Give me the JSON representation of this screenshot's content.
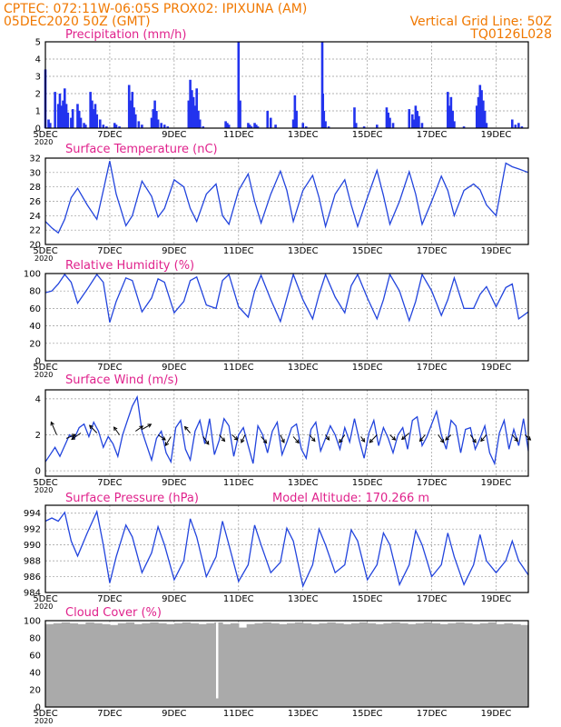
{
  "header": {
    "line1_left": "CPTEC:   072:11W-06:05S   PROX02: IPIXUNA (AM)",
    "line2_left": "05DEC2020 50Z (GMT)",
    "line2_right": "Vertical Grid Line: 50Z",
    "line3_right": "TQ0126L028"
  },
  "x_axis": {
    "tick_labels": [
      "5DEC",
      "7DEC",
      "9DEC",
      "11DEC",
      "13DEC",
      "15DEC",
      "17DEC",
      "19DEC"
    ],
    "year_label": "2020",
    "day_range": [
      5,
      20
    ]
  },
  "colors": {
    "series": "#2244dd",
    "bars": "#2233ee",
    "cloud": "#aaaaaa",
    "header": "#f07800",
    "title": "#e0228c",
    "grid": "#999999"
  },
  "chart_data": [
    {
      "type": "bar",
      "title": "Precipitation (mm/h)",
      "ylim": [
        0,
        5
      ],
      "yticks": [
        "0",
        "1",
        "2",
        "3",
        "4",
        "5"
      ],
      "x": [
        5.0,
        5.1,
        5.15,
        5.3,
        5.4,
        5.45,
        5.5,
        5.55,
        5.6,
        5.65,
        5.7,
        5.8,
        5.85,
        6.0,
        6.05,
        6.1,
        6.2,
        6.25,
        6.4,
        6.45,
        6.5,
        6.55,
        6.6,
        6.7,
        6.8,
        6.9,
        7.15,
        7.2,
        7.3,
        7.6,
        7.65,
        7.7,
        7.75,
        7.8,
        7.9,
        8.0,
        8.3,
        8.35,
        8.4,
        8.45,
        8.5,
        8.6,
        8.7,
        8.8,
        9.45,
        9.5,
        9.55,
        9.6,
        9.65,
        9.7,
        9.75,
        9.8,
        9.9,
        10.6,
        10.65,
        10.7,
        11.0,
        11.05,
        11.3,
        11.35,
        11.4,
        11.5,
        11.55,
        11.6,
        11.9,
        12.0,
        12.15,
        12.7,
        12.75,
        12.8,
        13.0,
        13.1,
        13.6,
        13.62,
        13.65,
        13.7,
        13.8,
        14.6,
        14.65,
        14.9,
        15.3,
        15.6,
        15.65,
        15.7,
        15.8,
        16.3,
        16.4,
        16.45,
        16.5,
        16.55,
        16.6,
        16.7,
        17.5,
        17.55,
        17.6,
        17.65,
        17.7,
        18.0,
        18.4,
        18.45,
        18.5,
        18.55,
        18.6,
        18.65,
        18.7,
        19.5,
        19.6,
        19.7,
        19.8
      ],
      "values": [
        3.4,
        0.5,
        0.3,
        2.1,
        1.4,
        2.0,
        1.3,
        1.6,
        2.3,
        1.4,
        0.9,
        0.6,
        1.1,
        1.4,
        1.0,
        0.6,
        0.3,
        0.2,
        2.1,
        1.6,
        1.1,
        1.4,
        0.8,
        0.5,
        0.2,
        0.1,
        0.3,
        0.2,
        0.1,
        2.5,
        1.6,
        2.1,
        1.2,
        0.8,
        0.4,
        0.2,
        0.6,
        1.1,
        1.6,
        1.0,
        0.5,
        0.3,
        0.2,
        0.1,
        1.6,
        2.8,
        2.2,
        1.8,
        1.3,
        2.3,
        1.0,
        0.5,
        0.1,
        0.4,
        0.3,
        0.2,
        5.0,
        1.6,
        0.3,
        0.2,
        0.1,
        0.3,
        0.2,
        0.1,
        1.0,
        0.6,
        0.2,
        0.5,
        1.9,
        1.0,
        0.3,
        0.1,
        5.0,
        2.0,
        1.0,
        0.4,
        0.1,
        1.2,
        0.3,
        0.1,
        0.2,
        1.2,
        0.9,
        0.6,
        0.3,
        1.1,
        0.8,
        0.5,
        1.3,
        1.0,
        0.7,
        0.3,
        2.1,
        1.3,
        1.8,
        1.0,
        0.4,
        0.1,
        1.3,
        1.8,
        2.5,
        2.2,
        1.6,
        1.0,
        0.3,
        0.5,
        0.2,
        0.3,
        0.1
      ]
    },
    {
      "type": "line",
      "title": "Surface Temperature (nC)",
      "ylim": [
        20,
        32
      ],
      "yticks": [
        "20",
        "22",
        "24",
        "26",
        "28",
        "30",
        "32"
      ],
      "x": [
        5.0,
        5.2,
        5.4,
        5.6,
        5.8,
        6.0,
        6.3,
        6.6,
        6.8,
        7.0,
        7.2,
        7.5,
        7.7,
        8.0,
        8.3,
        8.5,
        8.7,
        9.0,
        9.3,
        9.5,
        9.7,
        10.0,
        10.3,
        10.5,
        10.7,
        11.0,
        11.3,
        11.5,
        11.7,
        12.0,
        12.3,
        12.5,
        12.7,
        13.0,
        13.3,
        13.5,
        13.7,
        14.0,
        14.3,
        14.5,
        14.7,
        15.0,
        15.3,
        15.5,
        15.7,
        16.0,
        16.3,
        16.5,
        16.7,
        17.0,
        17.3,
        17.5,
        17.7,
        18.0,
        18.3,
        18.5,
        18.7,
        19.0,
        19.3,
        19.5,
        19.7,
        20.0
      ],
      "values": [
        23.2,
        22.3,
        21.6,
        23.5,
        26.5,
        27.8,
        25.5,
        23.5,
        27.5,
        31.6,
        27.0,
        22.6,
        24.0,
        28.8,
        26.7,
        23.8,
        25.0,
        29.0,
        28.0,
        25.0,
        23.2,
        27.0,
        28.4,
        24.0,
        22.8,
        27.5,
        29.8,
        26.0,
        23.0,
        27.0,
        30.2,
        27.5,
        23.2,
        27.5,
        29.6,
        26.5,
        22.5,
        27.0,
        29.0,
        25.5,
        22.5,
        26.5,
        30.3,
        26.8,
        22.8,
        26.0,
        30.1,
        27.0,
        22.8,
        26.0,
        29.5,
        27.5,
        24.0,
        27.5,
        28.4,
        27.6,
        25.5,
        24.0,
        31.3,
        30.8,
        30.5,
        30.0
      ]
    },
    {
      "type": "line",
      "title": "Relative Humidity (%)",
      "ylim": [
        0,
        100
      ],
      "yticks": [
        "0",
        "20",
        "40",
        "60",
        "80",
        "100"
      ],
      "x": [
        5.0,
        5.2,
        5.4,
        5.6,
        5.8,
        6.0,
        6.3,
        6.6,
        6.8,
        7.0,
        7.2,
        7.5,
        7.7,
        8.0,
        8.3,
        8.5,
        8.7,
        9.0,
        9.3,
        9.5,
        9.7,
        10.0,
        10.3,
        10.5,
        10.7,
        11.0,
        11.3,
        11.5,
        11.7,
        12.0,
        12.3,
        12.5,
        12.7,
        13.0,
        13.3,
        13.5,
        13.7,
        14.0,
        14.3,
        14.5,
        14.7,
        15.0,
        15.3,
        15.5,
        15.7,
        16.0,
        16.3,
        16.5,
        16.7,
        17.0,
        17.3,
        17.5,
        17.7,
        18.0,
        18.3,
        18.5,
        18.7,
        19.0,
        19.3,
        19.5,
        19.7,
        20.0
      ],
      "values": [
        78,
        80,
        88,
        99,
        90,
        66,
        82,
        99,
        90,
        44,
        68,
        95,
        92,
        56,
        72,
        94,
        90,
        55,
        68,
        92,
        96,
        64,
        60,
        92,
        99,
        62,
        50,
        80,
        98,
        70,
        45,
        72,
        99,
        70,
        48,
        76,
        99,
        73,
        55,
        86,
        99,
        72,
        48,
        70,
        99,
        80,
        46,
        68,
        99,
        80,
        52,
        70,
        95,
        60,
        60,
        76,
        85,
        62,
        84,
        88,
        48,
        56
      ]
    },
    {
      "type": "line",
      "title": "Surface Wind (m/s)",
      "ylim": [
        -0.3,
        4.5
      ],
      "yticks": [
        "0",
        "2",
        "4"
      ],
      "ytick_values": [
        0,
        2,
        4
      ],
      "x": [
        5.0,
        5.15,
        5.3,
        5.45,
        5.6,
        5.75,
        5.9,
        6.05,
        6.2,
        6.35,
        6.5,
        6.65,
        6.8,
        6.95,
        7.1,
        7.25,
        7.4,
        7.55,
        7.7,
        7.85,
        8.0,
        8.15,
        8.3,
        8.45,
        8.6,
        8.75,
        8.9,
        9.05,
        9.2,
        9.35,
        9.5,
        9.65,
        9.8,
        9.95,
        10.1,
        10.25,
        10.4,
        10.55,
        10.7,
        10.85,
        11.0,
        11.15,
        11.3,
        11.45,
        11.6,
        11.75,
        11.9,
        12.05,
        12.2,
        12.35,
        12.5,
        12.65,
        12.8,
        12.95,
        13.1,
        13.25,
        13.4,
        13.55,
        13.7,
        13.85,
        14.0,
        14.15,
        14.3,
        14.45,
        14.6,
        14.75,
        14.9,
        15.05,
        15.2,
        15.35,
        15.5,
        15.65,
        15.8,
        15.95,
        16.1,
        16.25,
        16.4,
        16.55,
        16.7,
        16.85,
        17.0,
        17.15,
        17.3,
        17.45,
        17.6,
        17.75,
        17.9,
        18.05,
        18.2,
        18.35,
        18.5,
        18.65,
        18.8,
        18.95,
        19.1,
        19.25,
        19.4,
        19.55,
        19.7,
        19.85,
        20.0
      ],
      "values": [
        0.5,
        0.9,
        1.3,
        0.8,
        1.4,
        2.0,
        1.8,
        2.4,
        2.6,
        1.9,
        2.7,
        2.2,
        1.3,
        1.9,
        1.5,
        0.8,
        2.0,
        2.8,
        3.6,
        4.1,
        2.2,
        1.4,
        0.6,
        1.8,
        2.2,
        1.0,
        0.5,
        2.4,
        2.8,
        1.2,
        0.6,
        2.2,
        2.8,
        1.5,
        2.9,
        0.9,
        1.7,
        2.9,
        2.5,
        0.8,
        2.0,
        2.4,
        1.4,
        0.4,
        2.5,
        2.0,
        1.0,
        2.2,
        2.7,
        0.9,
        1.6,
        2.4,
        2.6,
        1.2,
        0.7,
        2.3,
        2.7,
        1.1,
        1.8,
        2.5,
        2.0,
        1.2,
        2.4,
        1.6,
        2.9,
        1.7,
        0.7,
        2.1,
        2.8,
        1.4,
        2.4,
        1.8,
        1.0,
        2.0,
        2.4,
        1.2,
        2.8,
        3.0,
        1.4,
        1.9,
        2.6,
        3.3,
        2.0,
        1.2,
        2.8,
        2.5,
        1.0,
        2.3,
        2.4,
        1.2,
        1.8,
        2.5,
        1.0,
        0.4,
        2.1,
        2.8,
        1.2,
        2.3,
        1.4,
        2.9,
        1.1
      ],
      "arrows": {
        "x": [
          5.35,
          5.65,
          6.1,
          6.6,
          7.3,
          7.8,
          8.0,
          8.5,
          8.9,
          9.5,
          9.9,
          10.4,
          10.8,
          11.2,
          11.7,
          12.3,
          12.7,
          13.2,
          13.7,
          14.3,
          14.8,
          15.3,
          15.7,
          16.3,
          16.8,
          17.2,
          17.6,
          18.2,
          18.7,
          19.5,
          19.9
        ],
        "y": [
          2.0,
          1.8,
          2.1,
          2.1,
          2.0,
          2.2,
          2.3,
          2.0,
          1.9,
          2.1,
          1.9,
          2.0,
          2.0,
          2.0,
          1.9,
          2.0,
          1.9,
          2.0,
          2.0,
          2.0,
          1.9,
          2.0,
          2.0,
          2.1,
          2.0,
          2.0,
          2.0,
          2.0,
          2.0,
          2.0,
          2.0
        ],
        "u": [
          -0.3,
          0.5,
          -0.5,
          -0.4,
          -0.3,
          0.4,
          0.5,
          0.4,
          -0.3,
          -0.3,
          0.3,
          0.3,
          0.3,
          -0.2,
          0.3,
          0.2,
          0.3,
          0.3,
          0.2,
          -0.3,
          0.2,
          -0.4,
          0.3,
          -0.4,
          -0.3,
          0.3,
          -0.3,
          0.3,
          -0.3,
          0.3,
          0.3
        ],
        "v": [
          1.0,
          0.3,
          -0.5,
          0.6,
          0.6,
          0.4,
          0.4,
          -0.4,
          -0.7,
          0.5,
          -0.6,
          -0.5,
          -0.4,
          -0.6,
          -0.5,
          -0.6,
          -0.5,
          -0.5,
          -0.4,
          -0.6,
          -0.4,
          -0.6,
          -0.4,
          -0.5,
          -0.5,
          -0.6,
          -0.4,
          -0.6,
          -0.5,
          -0.5,
          -0.4
        ]
      }
    },
    {
      "type": "line",
      "title": "Surface Pressure (hPa)",
      "annotation": "Model Altitude: 170.266  m",
      "ylim": [
        984,
        995
      ],
      "yticks": [
        "984",
        "986",
        "988",
        "990",
        "992",
        "994"
      ],
      "ytick_values": [
        984,
        986,
        988,
        990,
        992,
        994
      ],
      "x": [
        5.0,
        5.2,
        5.4,
        5.6,
        5.8,
        6.0,
        6.3,
        6.6,
        6.8,
        7.0,
        7.2,
        7.5,
        7.7,
        8.0,
        8.3,
        8.5,
        8.7,
        9.0,
        9.3,
        9.5,
        9.7,
        10.0,
        10.3,
        10.5,
        10.7,
        11.0,
        11.3,
        11.5,
        11.7,
        12.0,
        12.3,
        12.5,
        12.7,
        13.0,
        13.3,
        13.5,
        13.7,
        14.0,
        14.3,
        14.5,
        14.7,
        15.0,
        15.3,
        15.5,
        15.7,
        16.0,
        16.3,
        16.5,
        16.7,
        17.0,
        17.3,
        17.5,
        17.7,
        18.0,
        18.3,
        18.5,
        18.7,
        19.0,
        19.3,
        19.5,
        19.7,
        20.0
      ],
      "values": [
        993.0,
        993.4,
        993.0,
        994.1,
        990.5,
        988.6,
        991.5,
        994.2,
        990.0,
        985.2,
        988.5,
        992.5,
        991.0,
        986.5,
        989.0,
        992.3,
        990.0,
        985.6,
        988.0,
        993.3,
        991.0,
        986.0,
        988.5,
        993.0,
        990.0,
        985.4,
        987.5,
        992.5,
        990.0,
        986.5,
        987.8,
        992.1,
        990.5,
        984.8,
        987.5,
        992.0,
        990.0,
        986.5,
        987.5,
        991.9,
        990.5,
        985.6,
        987.5,
        991.5,
        990.0,
        985.0,
        987.5,
        991.8,
        990.0,
        986.0,
        987.5,
        991.5,
        988.5,
        985.0,
        987.5,
        991.3,
        988.0,
        986.5,
        988.0,
        990.5,
        988.0,
        986.2
      ]
    },
    {
      "type": "bar",
      "title": "Cloud Cover (%)",
      "ylim": [
        0,
        100
      ],
      "yticks": [
        "0",
        "20",
        "40",
        "60",
        "80",
        "100"
      ],
      "x": [
        5.0,
        5.25,
        5.5,
        5.75,
        6.0,
        6.25,
        6.5,
        6.75,
        7.0,
        7.25,
        7.5,
        7.75,
        8.0,
        8.25,
        8.5,
        8.75,
        9.0,
        9.25,
        9.5,
        9.75,
        10.0,
        10.25,
        10.5,
        10.75,
        11.0,
        11.25,
        11.5,
        11.75,
        12.0,
        12.25,
        12.5,
        12.75,
        13.0,
        13.25,
        13.5,
        13.75,
        14.0,
        14.25,
        14.5,
        14.75,
        15.0,
        15.25,
        15.5,
        15.75,
        16.0,
        16.25,
        16.5,
        16.75,
        17.0,
        17.25,
        17.5,
        17.75,
        18.0,
        18.25,
        18.5,
        18.75,
        19.0,
        19.25,
        19.5,
        19.75
      ],
      "values": [
        96,
        97,
        98,
        97,
        96,
        98,
        97,
        96,
        95,
        97,
        98,
        96,
        97,
        98,
        97,
        96,
        97,
        98,
        97,
        96,
        97,
        98,
        96,
        97,
        92,
        96,
        97,
        98,
        97,
        96,
        97,
        98,
        97,
        96,
        97,
        98,
        97,
        96,
        97,
        98,
        97,
        96,
        97,
        98,
        97,
        96,
        97,
        98,
        97,
        96,
        97,
        98,
        97,
        96,
        97,
        98,
        96,
        97,
        96,
        95
      ],
      "gaps": [
        {
          "x": 10.3,
          "values": 10
        }
      ]
    }
  ]
}
